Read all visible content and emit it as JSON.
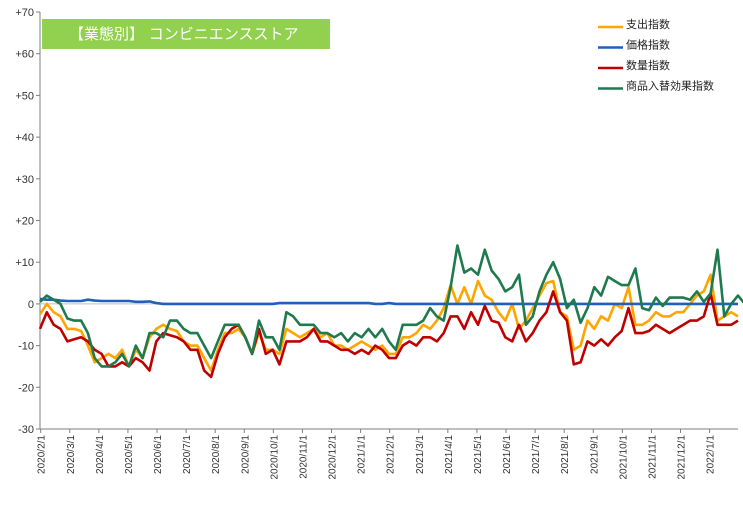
{
  "title": "【業態別】 コンビニエンスストア",
  "chart_data": {
    "type": "line",
    "ylim": [
      -30,
      70
    ],
    "yticks": [
      "+70",
      "+60",
      "+50",
      "+40",
      "+30",
      "+20",
      "+10",
      "0",
      "-10",
      "-20",
      "-30"
    ],
    "ytick_values": [
      70,
      60,
      50,
      40,
      30,
      20,
      10,
      0,
      -10,
      -20,
      -30
    ],
    "x_labels": [
      "2020/2/1",
      "2020/3/1",
      "2020/4/1",
      "2020/5/1",
      "2020/6/1",
      "2020/7/1",
      "2020/8/1",
      "2020/9/1",
      "2020/10/1",
      "2020/11/1",
      "2020/12/1",
      "2021/1/1",
      "2021/2/1",
      "2021/3/1",
      "2021/4/1",
      "2021/5/1",
      "2021/6/1",
      "2021/7/1",
      "2021/8/1",
      "2021/9/1",
      "2021/10/1",
      "2021/11/1",
      "2021/12/1",
      "2022/1/1"
    ],
    "grid": false,
    "legend_position": "top-right",
    "series": [
      {
        "name": "支出指数",
        "color": "#ffa500",
        "values": [
          -2.5,
          0,
          -2,
          -3,
          -6,
          -6,
          -6.5,
          -10,
          -14,
          -13,
          -12,
          -13,
          -11,
          -15,
          -11,
          -13,
          -8,
          -6,
          -5,
          -6,
          -6.5,
          -9,
          -10,
          -10,
          -13,
          -16,
          -11,
          -7,
          -7,
          -6,
          -8,
          -12,
          -7,
          -11,
          -11,
          -12,
          -6,
          -7,
          -8,
          -7,
          -6,
          -8,
          -7,
          -10,
          -10,
          -11,
          -10,
          -9,
          -10,
          -11,
          -10,
          -12,
          -12,
          -8,
          -8,
          -7,
          -5,
          -6,
          -4,
          -1,
          4.5,
          0,
          4,
          0,
          5.5,
          2,
          1,
          -2,
          -4,
          0,
          -6,
          -4,
          -1,
          2,
          5,
          5.5,
          -2,
          -3,
          -11,
          -10,
          -4,
          -6,
          -3,
          -4,
          0,
          -1,
          4,
          -5,
          -5,
          -4,
          -2,
          -3,
          -3,
          -2,
          -2,
          0,
          2,
          3,
          7,
          -4,
          -3,
          -2,
          -3
        ]
      },
      {
        "name": "価格指数",
        "color": "#1f5fbf",
        "values": [
          1.2,
          1,
          1,
          0.8,
          0.7,
          0.7,
          0.7,
          1,
          0.8,
          0.7,
          0.7,
          0.7,
          0.7,
          0.7,
          0.5,
          0.5,
          0.6,
          0.2,
          0,
          0,
          0,
          0,
          0,
          0,
          0,
          0,
          0,
          0,
          0,
          0,
          0,
          0,
          0,
          0,
          0,
          0.2,
          0.2,
          0.2,
          0.2,
          0.2,
          0.2,
          0.2,
          0.2,
          0.2,
          0.2,
          0.2,
          0.2,
          0.2,
          0.2,
          0,
          0,
          0.2,
          0,
          0,
          0,
          0,
          0,
          0,
          0,
          0,
          0,
          0,
          0,
          0,
          0,
          0,
          0,
          0,
          0,
          0,
          0,
          0,
          0,
          0,
          0,
          0,
          0,
          0,
          0,
          0,
          0,
          0,
          0,
          0,
          0,
          0,
          0,
          0,
          0,
          0,
          0,
          0,
          0,
          0,
          0,
          0,
          0,
          0,
          0,
          0,
          0,
          0,
          0
        ]
      },
      {
        "name": "数量指数",
        "color": "#c00000",
        "values": [
          -6,
          -2,
          -5,
          -6,
          -9,
          -8.5,
          -8,
          -9,
          -11,
          -12,
          -15,
          -15,
          -14,
          -15,
          -13,
          -14,
          -16,
          -9,
          -7,
          -7.5,
          -8,
          -9,
          -11,
          -11,
          -16,
          -17.5,
          -12,
          -8,
          -6,
          -5,
          -8,
          -12,
          -6,
          -12,
          -11,
          -14.5,
          -9,
          -9,
          -9,
          -8,
          -6,
          -9,
          -9,
          -10,
          -11,
          -11,
          -12,
          -11,
          -12,
          -10,
          -11,
          -13,
          -13,
          -10,
          -9,
          -10,
          -8,
          -8,
          -9,
          -7,
          -3,
          -3,
          -6,
          -2,
          -5,
          -0.5,
          -4,
          -4.5,
          -8,
          -9,
          -5,
          -9,
          -7,
          -4,
          -2,
          3,
          -2,
          -4,
          -14.5,
          -14,
          -9,
          -10,
          -8.5,
          -10,
          -8,
          -6.5,
          -1,
          -7,
          -7,
          -6.5,
          -5,
          -6,
          -7,
          -6,
          -5,
          -4,
          -4,
          -3,
          2.5,
          -5,
          -5,
          -5,
          -4
        ]
      },
      {
        "name": "商品入替効果指数",
        "color": "#1f7a4d",
        "values": [
          0.5,
          2,
          1,
          0,
          -3.5,
          -4,
          -4,
          -7,
          -13,
          -15,
          -15,
          -14,
          -12,
          -15,
          -10,
          -13,
          -7,
          -7,
          -8,
          -4,
          -4,
          -6,
          -7,
          -7,
          -10,
          -13,
          -9,
          -5,
          -5,
          -5,
          -8,
          -12,
          -4,
          -8,
          -8,
          -11,
          -2,
          -3,
          -5,
          -5,
          -5,
          -7,
          -7,
          -8,
          -7,
          -9,
          -7,
          -8,
          -6,
          -8,
          -6,
          -9,
          -11,
          -5,
          -5,
          -5,
          -4,
          -1,
          -3,
          -4,
          4,
          14,
          7.5,
          8.5,
          7,
          13,
          8,
          6,
          3,
          4,
          7,
          -5,
          -3,
          3,
          7,
          10,
          6,
          -1,
          1,
          -4.5,
          -1,
          4,
          2,
          6.5,
          5.5,
          4.5,
          4.5,
          8.5,
          -1,
          -1.5,
          1.5,
          -0.5,
          1.5,
          1.5,
          1.5,
          1,
          3,
          0.5,
          2.5,
          13,
          -3,
          0,
          2,
          0
        ]
      }
    ]
  }
}
